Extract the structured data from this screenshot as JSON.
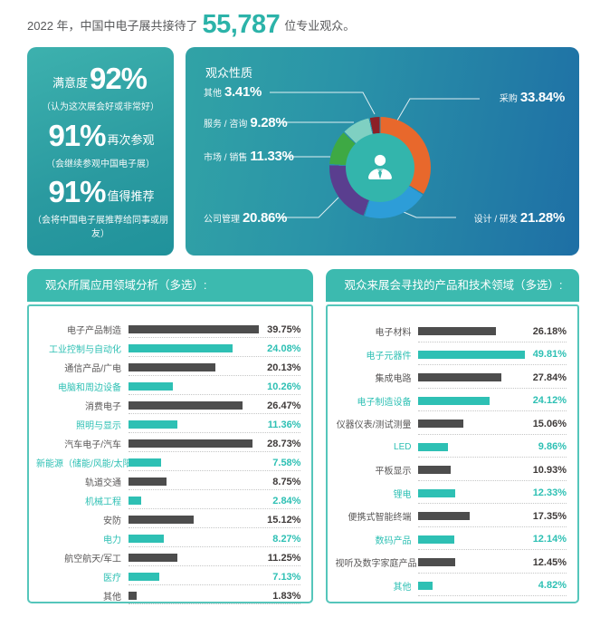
{
  "header": {
    "prefix": "2022 年，中国中电子展共接待了",
    "count": "55,787",
    "suffix": "位专业观众。"
  },
  "stats": {
    "items": [
      {
        "pre": "满意度",
        "value": "92%",
        "post": "",
        "note": "（认为这次展会好或非常好）"
      },
      {
        "pre": "",
        "value": "91%",
        "post": "再次参观",
        "note": "（会继续参观中国电子展）"
      },
      {
        "pre": "",
        "value": "91%",
        "post": "值得推荐",
        "note": "（会将中国电子展推荐给同事或朋友）"
      }
    ]
  },
  "colors": {
    "accent_teal": "#2cb3a9",
    "bar_dark": "#4d4d4d",
    "bar_teal": "#2ec0b4",
    "panel_header_teal": "#3cbaaf"
  },
  "icons": {
    "center_icon": "person-icon"
  },
  "chart_data": [
    {
      "type": "pie",
      "donut": true,
      "title": "观众性质",
      "labels": [
        "采购",
        "设计 / 研发",
        "公司管理",
        "市场 / 销售",
        "服务 / 咨询",
        "其他"
      ],
      "values": [
        33.84,
        21.28,
        20.86,
        11.33,
        9.28,
        3.41
      ],
      "display": [
        "33.84%",
        "21.28%",
        "20.86%",
        "11.33%",
        "9.28%",
        "3.41%"
      ],
      "colors": [
        "#e8682c",
        "#2d9dd8",
        "#5a3e8f",
        "#3ea944",
        "#7fd0c2",
        "#8c2027"
      ],
      "legend_position": "around"
    },
    {
      "type": "bar",
      "title": "观众所属应用领域分析（多选）:",
      "categories": [
        "电子产品制造",
        "工业控制与自动化",
        "通信产品/广电",
        "电脑和周边设备",
        "消费电子",
        "照明与显示",
        "汽车电子/汽车",
        "新能源（储能/风能/太阳能等）",
        "轨道交通",
        "机械工程",
        "安防",
        "电力",
        "航空航天/军工",
        "医疗",
        "其他"
      ],
      "values": [
        39.75,
        24.08,
        20.13,
        10.26,
        26.47,
        11.36,
        28.73,
        7.58,
        8.75,
        2.84,
        15.12,
        8.27,
        11.25,
        7.13,
        1.83
      ],
      "xlabel": "",
      "ylabel": "",
      "xlim": [
        0,
        40
      ],
      "grid": false
    },
    {
      "type": "bar",
      "title": "观众来展会寻找的产品和技术领域（多选）:",
      "categories": [
        "电子材料",
        "电子元器件",
        "集成电路",
        "电子制造设备",
        "仪器仪表/测试测量",
        "LED",
        "平板显示",
        "锂电",
        "便携式智能终端",
        "数码产品",
        "视听及数字家庭产品",
        "其他"
      ],
      "values": [
        26.18,
        49.81,
        27.84,
        24.12,
        15.06,
        9.86,
        10.93,
        12.33,
        17.35,
        12.14,
        12.45,
        4.82
      ],
      "xlabel": "",
      "ylabel": "",
      "xlim": [
        0,
        50
      ],
      "grid": false
    }
  ]
}
